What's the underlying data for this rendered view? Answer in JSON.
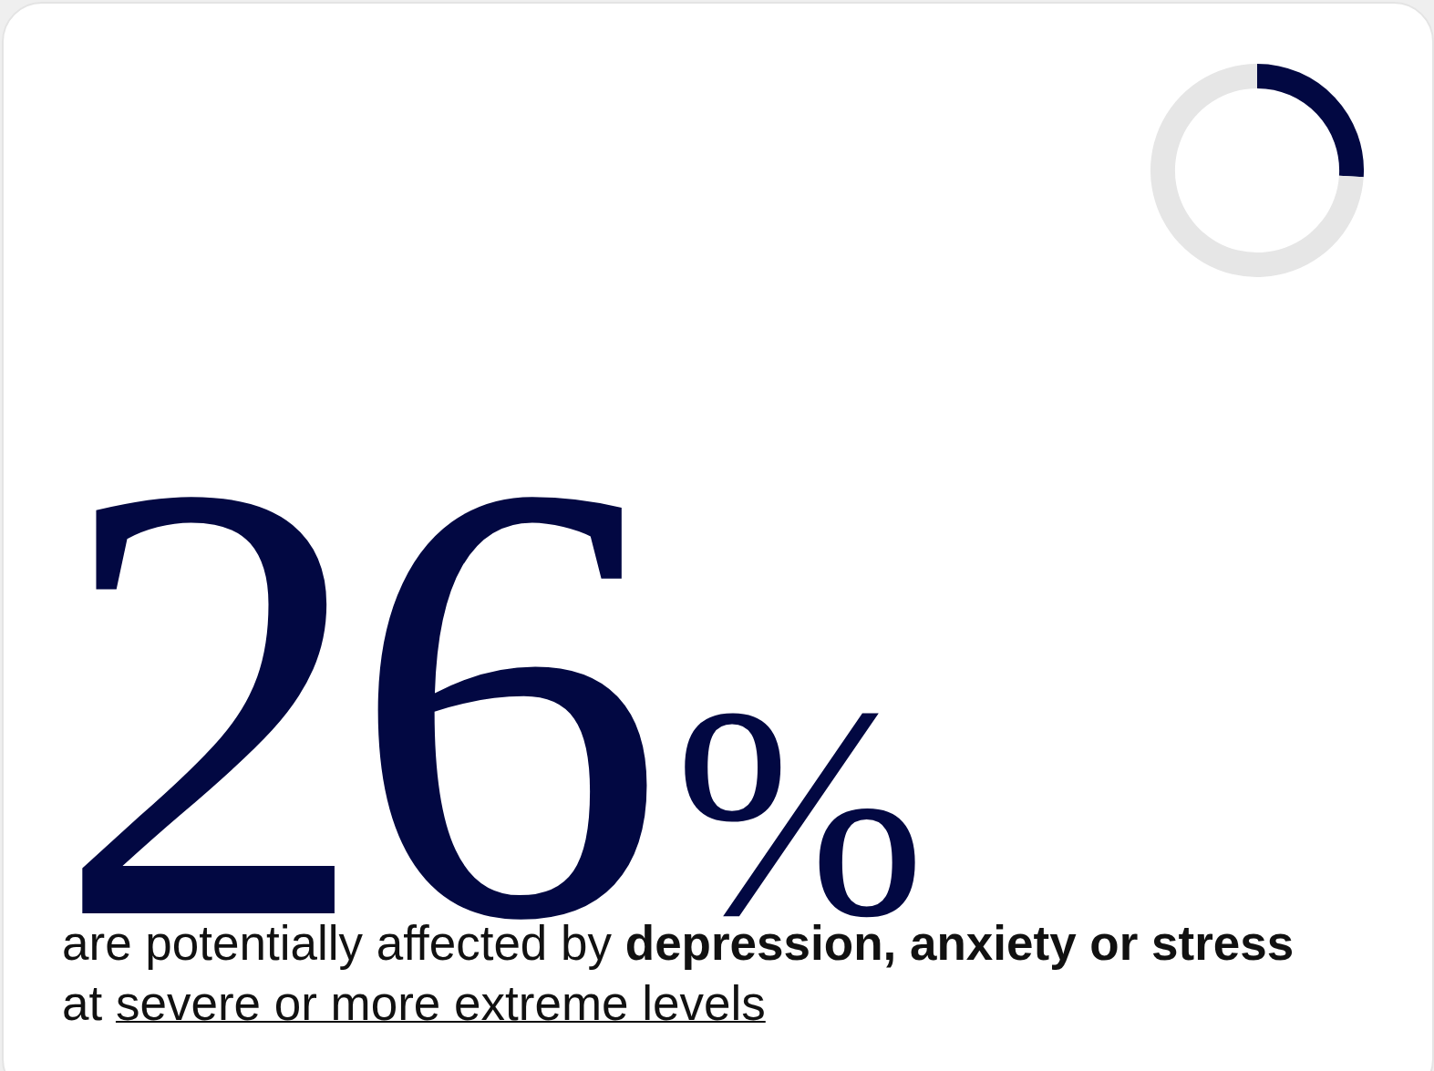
{
  "chart_data": {
    "type": "donut",
    "categories": [
      null,
      null
    ],
    "values": [
      26,
      74
    ],
    "colors": [
      "#020842",
      "#e6e6e6"
    ],
    "value_labels": [
      "26%",
      null
    ],
    "legend": false,
    "annotations": [
      "are potentially affected by ",
      "depression, anxiety or stress",
      " at ",
      "severe or more extreme levels"
    ]
  }
}
